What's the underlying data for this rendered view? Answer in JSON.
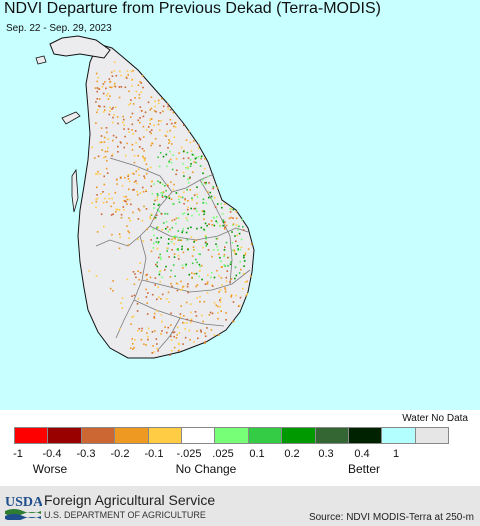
{
  "header": {
    "title": "NDVI Departure from Previous Dekad (Terra-MODIS)",
    "date_range": "Sep. 22 - Sep. 29, 2023"
  },
  "map": {
    "water_color": "#c8ffff",
    "land_color": "#ecebee",
    "boundary_color": "#7a7a7a"
  },
  "legend": {
    "water_no_data_label": "Water No Data",
    "swatches": [
      {
        "color": "#ff0000",
        "name": "swatch-lt-neg1"
      },
      {
        "color": "#990000",
        "name": "swatch-neg1-neg04"
      },
      {
        "color": "#cc6633",
        "name": "swatch-neg04-neg03"
      },
      {
        "color": "#ee9922",
        "name": "swatch-neg03-neg02"
      },
      {
        "color": "#ffcc44",
        "name": "swatch-neg02-neg01"
      },
      {
        "color": "#ffffff",
        "name": "swatch-no-change"
      },
      {
        "color": "#77ff77",
        "name": "swatch-0025-01"
      },
      {
        "color": "#33cc44",
        "name": "swatch-01-02"
      },
      {
        "color": "#009900",
        "name": "swatch-02-03"
      },
      {
        "color": "#336633",
        "name": "swatch-03-04"
      },
      {
        "color": "#002200",
        "name": "swatch-04-1"
      },
      {
        "color": "#b3ffff",
        "name": "swatch-water"
      },
      {
        "color": "#e6e6e6",
        "name": "swatch-no-data"
      }
    ],
    "ticks": [
      "-1",
      "-0.4",
      "-0.3",
      "-0.2",
      "-0.1",
      "-.025",
      ".025",
      "0.1",
      "0.2",
      "0.3",
      "0.4",
      "1"
    ],
    "categories": {
      "worse": "Worse",
      "no_change": "No Change",
      "better": "Better"
    }
  },
  "footer": {
    "logo_text": "USDA",
    "agency": "Foreign Agricultural Service",
    "department": "U.S. DEPARTMENT OF AGRICULTURE",
    "source": "Source: NDVI MODIS-Terra at 250-m"
  }
}
